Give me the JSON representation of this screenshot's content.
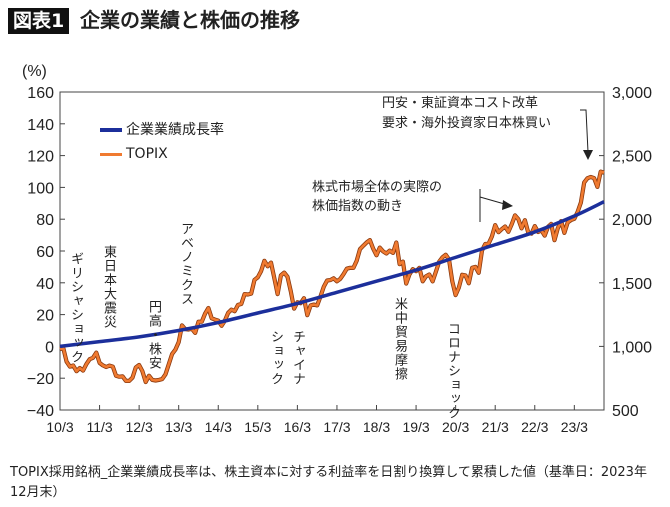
{
  "header": {
    "badge": "図表1",
    "title": "企業の業績と株価の推移"
  },
  "footnote": "TOPIX採用銘柄_企業業績成長率は、株主資本に対する利益率を日割り換算して累積した値（基準日：2023年12月末）",
  "chart_data": {
    "type": "line",
    "left_axis": {
      "unit_label": "(%)",
      "range": [
        -40,
        160
      ],
      "ticks": [
        "160",
        "140",
        "120",
        "100",
        "80",
        "60",
        "40",
        "20",
        "0",
        "−20",
        "−40"
      ]
    },
    "right_axis": {
      "range": [
        500,
        3000
      ],
      "ticks": [
        "3,000",
        "2,500",
        "2,000",
        "1,500",
        "1,000",
        "500"
      ]
    },
    "x_ticks": [
      "10/3",
      "11/3",
      "12/3",
      "13/3",
      "14/3",
      "15/3",
      "16/3",
      "17/3",
      "18/3",
      "19/3",
      "20/3",
      "21/3",
      "22/3",
      "23/3"
    ],
    "x_range": [
      "2010-03",
      "2023-12"
    ],
    "legend": {
      "position": "top-left",
      "items": [
        "企業業績成長率",
        "TOPIX"
      ]
    },
    "series": [
      {
        "name": "企業業績成長率",
        "axis": "left",
        "color": "#1c2f9b",
        "x": [
          "2010-03",
          "2011-03",
          "2012-03",
          "2013-03",
          "2014-03",
          "2015-03",
          "2016-03",
          "2017-03",
          "2018-03",
          "2019-03",
          "2020-03",
          "2021-03",
          "2022-03",
          "2023-03",
          "2023-12"
        ],
        "values": [
          0,
          3,
          6,
          10,
          15,
          21,
          27,
          34,
          41,
          48,
          56,
          64,
          72,
          82,
          91
        ]
      },
      {
        "name": "TOPIX",
        "axis": "right",
        "color": "#f07a30",
        "x_start": "2010-03",
        "frequency": "monthly",
        "values": [
          979,
          987,
          880,
          841,
          850,
          805,
          830,
          810,
          861,
          899,
          910,
          951,
          870,
          851,
          838,
          849,
          841,
          770,
          762,
          764,
          729,
          729,
          755,
          835,
          854,
          805,
          720,
          770,
          737,
          732,
          737,
          743,
          781,
          860,
          940,
          975,
          1034,
          1165,
          1135,
          1133,
          1138,
          1106,
          1194,
          1194,
          1258,
          1302,
          1221,
          1211,
          1203,
          1162,
          1201,
          1263,
          1289,
          1277,
          1326,
          1333,
          1411,
          1408,
          1415,
          1523,
          1543,
          1592,
          1673,
          1630,
          1659,
          1537,
          1411,
          1558,
          1580,
          1547,
          1432,
          1297,
          1347,
          1340,
          1379,
          1245,
          1322,
          1329,
          1322,
          1393,
          1469,
          1518,
          1521,
          1535,
          1512,
          1531,
          1568,
          1611,
          1618,
          1617,
          1674,
          1765,
          1792,
          1817,
          1836,
          1768,
          1716,
          1777,
          1747,
          1730,
          1753,
          1735,
          1817,
          1646,
          1667,
          1494,
          1567,
          1607,
          1591,
          1617,
          1512,
          1551,
          1565,
          1511,
          1587,
          1667,
          1700,
          1721,
          1684,
          1511,
          1403,
          1464,
          1563,
          1558,
          1496,
          1618,
          1625,
          1579,
          1754,
          1805,
          1808,
          1864,
          1954,
          1898,
          1922,
          1943,
          1901,
          1960,
          2030,
          2001,
          1928,
          1992,
          1896,
          1887,
          1946,
          1899,
          1912,
          1871,
          1940,
          1963,
          1835,
          1929,
          1985,
          1892,
          1975,
          1993,
          2003,
          2057,
          2131,
          2289,
          2322,
          2332,
          2323,
          2254,
          2374,
          2366
        ]
      }
    ],
    "annotations": {
      "greece": "ギリシャショック",
      "quake": "東日本大震災",
      "yen_high": "円高・株安",
      "abenomics": "アベノミクス",
      "china_1": "チャイナ",
      "china_2": "ショック",
      "trade_war": "米中貿易摩擦",
      "corona": "コロナショック",
      "market_1": "株式市場全体の実際の",
      "market_2": "株価指数の動き",
      "weak_yen_1": "円安・東証資本コスト改革",
      "weak_yen_2": "要求・海外投資家日本株買い"
    }
  }
}
